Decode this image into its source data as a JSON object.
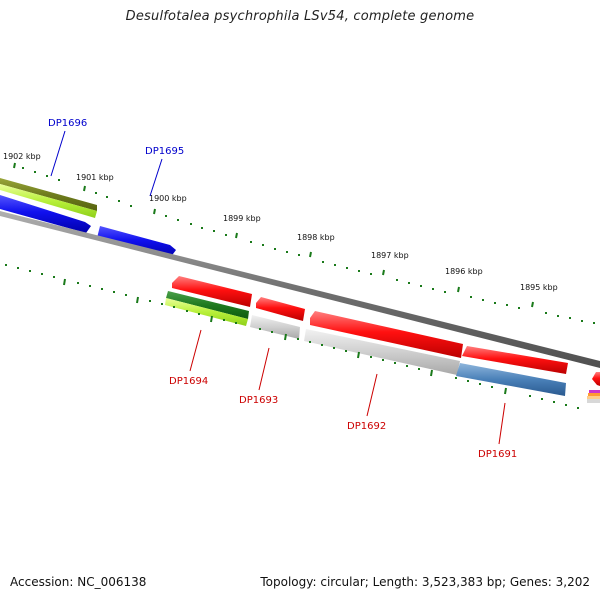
{
  "title": "Desulfotalea psychrophila LSv54, complete genome",
  "footer": {
    "accession": "Accession: NC_006138",
    "summary": "Topology: circular; Length: 3,523,383 bp; Genes: 3,202"
  },
  "colors": {
    "forward_label": "#0000cc",
    "reverse_label": "#cc0000",
    "backbone": "#777777",
    "ticks": "#1a7a1a"
  },
  "tick_labels": [
    "1902 kbp",
    "1901 kbp",
    "1900 kbp",
    "1899 kbp",
    "1898 kbp",
    "1897 kbp",
    "1896 kbp",
    "1895 kbp"
  ],
  "genes": [
    {
      "name": "DP1696",
      "strand": "forward"
    },
    {
      "name": "DP1695",
      "strand": "forward"
    },
    {
      "name": "DP1694",
      "strand": "reverse"
    },
    {
      "name": "DP1693",
      "strand": "reverse"
    },
    {
      "name": "DP1692",
      "strand": "reverse"
    },
    {
      "name": "DP1691",
      "strand": "reverse"
    }
  ]
}
